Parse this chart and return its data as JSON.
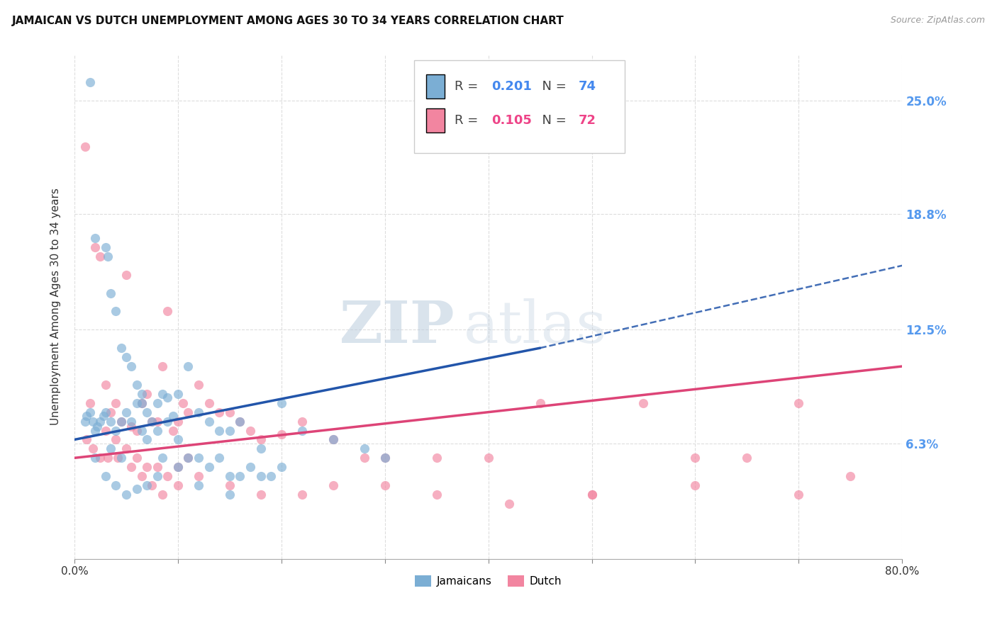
{
  "title": "JAMAICAN VS DUTCH UNEMPLOYMENT AMONG AGES 30 TO 34 YEARS CORRELATION CHART",
  "source": "Source: ZipAtlas.com",
  "ylabel": "Unemployment Among Ages 30 to 34 years",
  "ytick_labels": [
    "6.3%",
    "12.5%",
    "18.8%",
    "25.0%"
  ],
  "ytick_values": [
    6.3,
    12.5,
    18.8,
    25.0
  ],
  "xlim": [
    0.0,
    80.0
  ],
  "ylim": [
    0.0,
    27.5
  ],
  "legend_jamaicans": "Jamaicans",
  "legend_dutch": "Dutch",
  "color_jamaicans": "#7BAED4",
  "color_dutch": "#F285A0",
  "color_trend_j": "#2255AA",
  "color_trend_d": "#DD4477",
  "watermark_zip": "ZIP",
  "watermark_atlas": "atlas",
  "jamaicans_x": [
    1.5,
    2.0,
    3.0,
    3.2,
    3.5,
    4.0,
    4.5,
    5.0,
    5.5,
    6.0,
    6.5,
    7.0,
    7.5,
    8.0,
    8.5,
    9.0,
    9.5,
    10.0,
    11.0,
    12.0,
    13.0,
    14.0,
    15.0,
    16.0,
    18.0,
    20.0,
    22.0,
    25.0,
    28.0,
    30.0,
    1.0,
    1.2,
    1.5,
    1.8,
    2.0,
    2.2,
    2.5,
    2.8,
    3.0,
    3.5,
    4.0,
    4.5,
    5.0,
    5.5,
    6.0,
    6.5,
    7.0,
    8.0,
    9.0,
    10.0,
    11.0,
    12.0,
    13.0,
    14.0,
    15.0,
    16.0,
    17.0,
    18.0,
    19.0,
    20.0,
    2.0,
    3.0,
    4.0,
    5.0,
    6.0,
    7.0,
    8.0,
    10.0,
    12.0,
    15.0,
    3.5,
    4.5,
    6.5,
    8.5
  ],
  "jamaicans_y": [
    26.0,
    17.5,
    17.0,
    16.5,
    14.5,
    13.5,
    11.5,
    11.0,
    10.5,
    9.5,
    8.5,
    8.0,
    7.5,
    8.5,
    9.0,
    8.8,
    7.8,
    9.0,
    10.5,
    8.0,
    7.5,
    7.0,
    7.0,
    7.5,
    6.0,
    8.5,
    7.0,
    6.5,
    6.0,
    5.5,
    7.5,
    7.8,
    8.0,
    7.5,
    7.0,
    7.2,
    7.5,
    7.8,
    8.0,
    7.5,
    7.0,
    7.5,
    8.0,
    7.5,
    8.5,
    9.0,
    6.5,
    7.0,
    7.5,
    6.5,
    5.5,
    5.5,
    5.0,
    5.5,
    4.5,
    4.5,
    5.0,
    4.5,
    4.5,
    5.0,
    5.5,
    4.5,
    4.0,
    3.5,
    3.8,
    4.0,
    4.5,
    5.0,
    4.0,
    3.5,
    6.0,
    5.5,
    7.0,
    5.5
  ],
  "dutch_x": [
    1.0,
    1.5,
    2.0,
    2.5,
    3.0,
    3.5,
    4.0,
    4.5,
    5.0,
    5.5,
    6.0,
    6.5,
    7.0,
    7.5,
    8.0,
    8.5,
    9.0,
    9.5,
    10.0,
    10.5,
    11.0,
    12.0,
    13.0,
    14.0,
    15.0,
    16.0,
    17.0,
    18.0,
    20.0,
    22.0,
    25.0,
    28.0,
    30.0,
    35.0,
    40.0,
    45.0,
    50.0,
    55.0,
    60.0,
    65.0,
    70.0,
    75.0,
    1.2,
    1.8,
    2.5,
    3.2,
    4.2,
    5.5,
    6.5,
    7.5,
    8.5,
    10.0,
    12.0,
    15.0,
    18.0,
    22.0,
    25.0,
    30.0,
    35.0,
    42.0,
    50.0,
    60.0,
    70.0,
    3.0,
    4.0,
    5.0,
    6.0,
    7.0,
    8.0,
    9.0,
    10.0,
    11.0
  ],
  "dutch_y": [
    22.5,
    8.5,
    17.0,
    16.5,
    9.5,
    8.0,
    8.5,
    7.5,
    15.5,
    7.2,
    7.0,
    8.5,
    9.0,
    7.5,
    7.5,
    10.5,
    13.5,
    7.0,
    7.5,
    8.5,
    8.0,
    9.5,
    8.5,
    8.0,
    8.0,
    7.5,
    7.0,
    6.5,
    6.8,
    7.5,
    6.5,
    5.5,
    5.5,
    5.5,
    5.5,
    8.5,
    3.5,
    8.5,
    5.5,
    5.5,
    8.5,
    4.5,
    6.5,
    6.0,
    5.5,
    5.5,
    5.5,
    5.0,
    4.5,
    4.0,
    3.5,
    4.0,
    4.5,
    4.0,
    3.5,
    3.5,
    4.0,
    4.0,
    3.5,
    3.0,
    3.5,
    4.0,
    3.5,
    7.0,
    6.5,
    6.0,
    5.5,
    5.0,
    5.0,
    4.5,
    5.0,
    5.5
  ],
  "trend_j_start_x": 0.0,
  "trend_j_start_y": 6.5,
  "trend_j_solid_end_x": 45.0,
  "trend_j_solid_end_y": 11.5,
  "trend_j_dash_end_x": 80.0,
  "trend_j_dash_end_y": 16.0,
  "trend_d_start_x": 0.0,
  "trend_d_start_y": 5.5,
  "trend_d_end_x": 80.0,
  "trend_d_end_y": 10.5
}
